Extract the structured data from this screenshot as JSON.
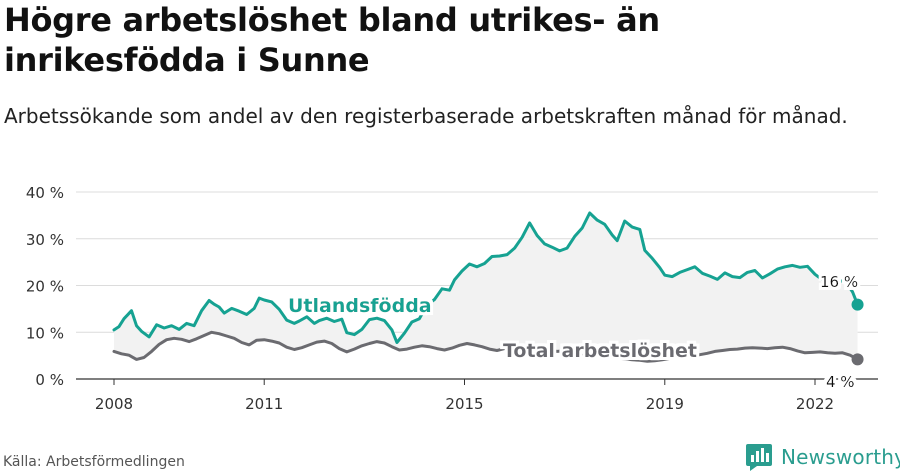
{
  "title": "Högre arbetslöshet bland utrikes- än inrikesfödda i Sunne",
  "subtitle": "Arbetssökande som andel av den registerbaserade arbetskraften månad för månad.",
  "source": "Källa: Arbetsförmedlingen",
  "brand": "Newsworthy",
  "colors": {
    "utlandsfodda": "#16a292",
    "total": "#6b6b70",
    "grid": "#dcdcdc",
    "band": "#f2f2f2",
    "brand": "#2a9d8f"
  },
  "chart_data": {
    "type": "line",
    "xlabel": "",
    "ylabel": "",
    "ylim": [
      0,
      40
    ],
    "xlim": [
      2007.6,
      2022.9
    ],
    "y_ticks": [
      0,
      10,
      20,
      30,
      40
    ],
    "y_tick_labels": [
      "0 %",
      "10 %",
      "20 %",
      "30 %",
      "40 %"
    ],
    "x_ticks": [
      2008,
      2011,
      2015,
      2019,
      2022
    ],
    "x_tick_labels": [
      "2008",
      "2011",
      "2015",
      "2019",
      "2022"
    ],
    "grid": true,
    "series": [
      {
        "name": "Utlandsfödda",
        "end_label": "16 %",
        "points": [
          [
            2008.0,
            10.5
          ],
          [
            2008.1,
            11.2
          ],
          [
            2008.2,
            12.9
          ],
          [
            2008.35,
            14.6
          ],
          [
            2008.45,
            11.4
          ],
          [
            2008.55,
            10.2
          ],
          [
            2008.7,
            9.0
          ],
          [
            2008.85,
            11.6
          ],
          [
            2009.0,
            10.9
          ],
          [
            2009.15,
            11.4
          ],
          [
            2009.3,
            10.6
          ],
          [
            2009.45,
            11.9
          ],
          [
            2009.6,
            11.4
          ],
          [
            2009.75,
            14.6
          ],
          [
            2009.9,
            16.8
          ],
          [
            2010.0,
            16.0
          ],
          [
            2010.1,
            15.4
          ],
          [
            2010.2,
            14.1
          ],
          [
            2010.35,
            15.1
          ],
          [
            2010.5,
            14.5
          ],
          [
            2010.65,
            13.8
          ],
          [
            2010.8,
            15.1
          ],
          [
            2010.9,
            17.3
          ],
          [
            2011.0,
            16.9
          ],
          [
            2011.15,
            16.5
          ],
          [
            2011.3,
            14.9
          ],
          [
            2011.45,
            12.6
          ],
          [
            2011.6,
            11.9
          ],
          [
            2011.7,
            12.4
          ],
          [
            2011.85,
            13.3
          ],
          [
            2012.0,
            11.9
          ],
          [
            2012.1,
            12.5
          ],
          [
            2012.25,
            13.0
          ],
          [
            2012.4,
            12.3
          ],
          [
            2012.55,
            12.8
          ],
          [
            2012.65,
            9.9
          ],
          [
            2012.8,
            9.5
          ],
          [
            2012.95,
            10.6
          ],
          [
            2013.1,
            12.7
          ],
          [
            2013.25,
            13.0
          ],
          [
            2013.4,
            12.5
          ],
          [
            2013.55,
            10.5
          ],
          [
            2013.65,
            7.8
          ],
          [
            2013.8,
            9.8
          ],
          [
            2013.95,
            12.2
          ],
          [
            2014.1,
            12.9
          ],
          [
            2014.25,
            15.8
          ],
          [
            2014.4,
            17.0
          ],
          [
            2014.55,
            19.3
          ],
          [
            2014.7,
            19.0
          ],
          [
            2014.8,
            21.2
          ],
          [
            2014.95,
            23.1
          ],
          [
            2015.1,
            24.6
          ],
          [
            2015.25,
            24.0
          ],
          [
            2015.4,
            24.7
          ],
          [
            2015.55,
            26.2
          ],
          [
            2015.7,
            26.3
          ],
          [
            2015.85,
            26.6
          ],
          [
            2016.0,
            28.0
          ],
          [
            2016.15,
            30.3
          ],
          [
            2016.3,
            33.4
          ],
          [
            2016.45,
            30.7
          ],
          [
            2016.6,
            28.9
          ],
          [
            2016.75,
            28.2
          ],
          [
            2016.9,
            27.4
          ],
          [
            2017.05,
            28.0
          ],
          [
            2017.2,
            30.5
          ],
          [
            2017.35,
            32.3
          ],
          [
            2017.5,
            35.5
          ],
          [
            2017.65,
            34.0
          ],
          [
            2017.8,
            33.1
          ],
          [
            2017.95,
            30.8
          ],
          [
            2018.05,
            29.6
          ],
          [
            2018.2,
            33.8
          ],
          [
            2018.35,
            32.5
          ],
          [
            2018.5,
            32.0
          ],
          [
            2018.6,
            27.5
          ],
          [
            2018.75,
            25.8
          ],
          [
            2018.9,
            23.8
          ],
          [
            2019.0,
            22.2
          ],
          [
            2019.15,
            21.9
          ],
          [
            2019.3,
            22.8
          ],
          [
            2019.45,
            23.4
          ],
          [
            2019.6,
            24.0
          ],
          [
            2019.75,
            22.6
          ],
          [
            2019.9,
            22.0
          ],
          [
            2020.05,
            21.3
          ],
          [
            2020.2,
            22.7
          ],
          [
            2020.35,
            21.9
          ],
          [
            2020.5,
            21.7
          ],
          [
            2020.65,
            22.8
          ],
          [
            2020.8,
            23.2
          ],
          [
            2020.95,
            21.6
          ],
          [
            2021.1,
            22.5
          ],
          [
            2021.25,
            23.5
          ],
          [
            2021.4,
            24.0
          ],
          [
            2021.55,
            24.3
          ],
          [
            2021.7,
            23.9
          ],
          [
            2021.85,
            24.1
          ],
          [
            2022.0,
            22.4
          ],
          [
            2022.15,
            21.2
          ],
          [
            2022.3,
            20.2
          ],
          [
            2022.45,
            20.8
          ],
          [
            2022.6,
            21.1
          ],
          [
            2022.75,
            18.6
          ],
          [
            2022.85,
            15.9
          ]
        ]
      },
      {
        "name": "Total arbetslöshet",
        "end_label": "4 %",
        "points": [
          [
            2008.0,
            5.9
          ],
          [
            2008.15,
            5.4
          ],
          [
            2008.3,
            5.1
          ],
          [
            2008.45,
            4.2
          ],
          [
            2008.6,
            4.6
          ],
          [
            2008.75,
            5.9
          ],
          [
            2008.9,
            7.4
          ],
          [
            2009.05,
            8.4
          ],
          [
            2009.2,
            8.7
          ],
          [
            2009.35,
            8.5
          ],
          [
            2009.5,
            8.0
          ],
          [
            2009.65,
            8.6
          ],
          [
            2009.8,
            9.3
          ],
          [
            2009.95,
            10.0
          ],
          [
            2010.1,
            9.7
          ],
          [
            2010.25,
            9.2
          ],
          [
            2010.4,
            8.7
          ],
          [
            2010.55,
            7.8
          ],
          [
            2010.7,
            7.3
          ],
          [
            2010.85,
            8.3
          ],
          [
            2011.0,
            8.4
          ],
          [
            2011.15,
            8.1
          ],
          [
            2011.3,
            7.7
          ],
          [
            2011.45,
            6.8
          ],
          [
            2011.6,
            6.3
          ],
          [
            2011.75,
            6.7
          ],
          [
            2011.9,
            7.3
          ],
          [
            2012.05,
            7.9
          ],
          [
            2012.2,
            8.1
          ],
          [
            2012.35,
            7.6
          ],
          [
            2012.5,
            6.5
          ],
          [
            2012.65,
            5.8
          ],
          [
            2012.8,
            6.4
          ],
          [
            2012.95,
            7.1
          ],
          [
            2013.1,
            7.6
          ],
          [
            2013.25,
            8.0
          ],
          [
            2013.4,
            7.7
          ],
          [
            2013.55,
            6.9
          ],
          [
            2013.7,
            6.2
          ],
          [
            2013.85,
            6.4
          ],
          [
            2014.0,
            6.8
          ],
          [
            2014.15,
            7.1
          ],
          [
            2014.3,
            6.9
          ],
          [
            2014.45,
            6.5
          ],
          [
            2014.6,
            6.2
          ],
          [
            2014.75,
            6.6
          ],
          [
            2014.9,
            7.2
          ],
          [
            2015.05,
            7.6
          ],
          [
            2015.2,
            7.3
          ],
          [
            2015.35,
            6.9
          ],
          [
            2015.5,
            6.4
          ],
          [
            2015.65,
            6.1
          ],
          [
            2015.8,
            6.5
          ],
          [
            2015.95,
            6.9
          ],
          [
            2016.1,
            7.2
          ],
          [
            2016.25,
            6.9
          ],
          [
            2016.4,
            6.6
          ],
          [
            2016.55,
            6.3
          ],
          [
            2016.7,
            6.1
          ],
          [
            2016.85,
            5.9
          ],
          [
            2017.0,
            6.0
          ],
          [
            2017.15,
            5.8
          ],
          [
            2017.3,
            5.5
          ],
          [
            2017.45,
            5.2
          ],
          [
            2017.6,
            5.0
          ],
          [
            2017.75,
            4.8
          ],
          [
            2017.9,
            4.6
          ],
          [
            2018.05,
            4.5
          ],
          [
            2018.2,
            4.3
          ],
          [
            2018.35,
            4.1
          ],
          [
            2018.5,
            4.0
          ],
          [
            2018.65,
            3.8
          ],
          [
            2018.8,
            3.9
          ],
          [
            2018.95,
            4.1
          ],
          [
            2019.1,
            4.4
          ],
          [
            2019.25,
            4.6
          ],
          [
            2019.4,
            4.8
          ],
          [
            2019.55,
            4.9
          ],
          [
            2019.7,
            5.2
          ],
          [
            2019.85,
            5.5
          ],
          [
            2020.0,
            5.9
          ],
          [
            2020.15,
            6.1
          ],
          [
            2020.3,
            6.3
          ],
          [
            2020.45,
            6.4
          ],
          [
            2020.6,
            6.6
          ],
          [
            2020.75,
            6.7
          ],
          [
            2020.9,
            6.6
          ],
          [
            2021.05,
            6.5
          ],
          [
            2021.2,
            6.7
          ],
          [
            2021.35,
            6.8
          ],
          [
            2021.5,
            6.5
          ],
          [
            2021.65,
            6.0
          ],
          [
            2021.8,
            5.6
          ],
          [
            2021.95,
            5.7
          ],
          [
            2022.1,
            5.8
          ],
          [
            2022.25,
            5.6
          ],
          [
            2022.4,
            5.5
          ],
          [
            2022.55,
            5.6
          ],
          [
            2022.7,
            5.1
          ],
          [
            2022.85,
            4.2
          ]
        ]
      }
    ]
  }
}
